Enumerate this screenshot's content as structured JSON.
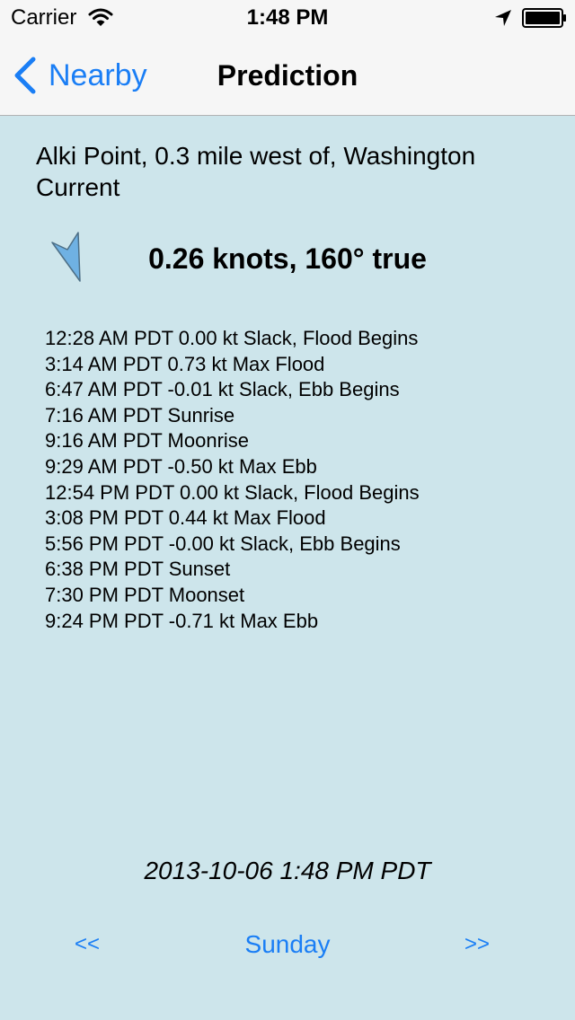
{
  "status_bar": {
    "carrier": "Carrier",
    "time": "1:48 PM",
    "icons": [
      "wifi-icon",
      "location-icon",
      "battery-icon"
    ]
  },
  "nav": {
    "back_label": "Nearby",
    "title": "Prediction"
  },
  "station": {
    "name": "Alki Point, 0.3 mile west of, Washington Current",
    "reading": "0.26 knots, 160° true",
    "arrow_icon": "current-direction-arrow-icon",
    "arrow_direction_degrees": 160
  },
  "events": [
    "12:28 AM PDT 0.00 kt Slack, Flood Begins",
    "3:14 AM PDT 0.73 kt Max Flood",
    "6:47 AM PDT -0.01 kt Slack, Ebb Begins",
    "7:16 AM PDT Sunrise",
    "9:16 AM PDT Moonrise",
    "9:29 AM PDT -0.50 kt Max Ebb",
    "12:54 PM PDT 0.00 kt Slack, Flood Begins",
    "3:08 PM PDT 0.44 kt Max Flood",
    "5:56 PM PDT -0.00 kt Slack, Ebb Begins",
    "6:38 PM PDT Sunset",
    "7:30 PM PDT Moonset",
    "9:24 PM PDT -0.71 kt Max Ebb"
  ],
  "timestamp": "2013-10-06  1:48 PM PDT",
  "day_nav": {
    "prev_label": "<<",
    "day_label": "Sunday",
    "next_label": ">>"
  },
  "colors": {
    "background": "#cde5eb",
    "bar": "#f6f6f6",
    "accent": "#1a7ef5",
    "arrow_fill": "#6fb1e3"
  }
}
